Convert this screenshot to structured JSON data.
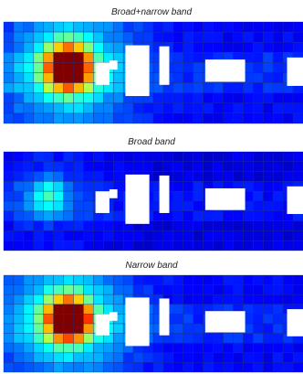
{
  "chart_data": [
    {
      "type": "heatmap",
      "title": "Broad+narrow band",
      "grid": true,
      "colormap": "jet",
      "hotspot": {
        "col": 6,
        "row": 4,
        "peak": 1.0,
        "spread": 2.0,
        "halo": 0.3
      },
      "background_level": 0.1
    },
    {
      "type": "heatmap",
      "title": "Broad band",
      "grid": true,
      "colormap": "jet",
      "hotspot": {
        "col": 4,
        "row": 4,
        "peak": 0.22,
        "spread": 1.8,
        "halo": 0.08
      },
      "background_level": 0.07
    },
    {
      "type": "heatmap",
      "title": "Narrow band",
      "grid": true,
      "colormap": "jet",
      "hotspot": {
        "col": 6,
        "row": 4,
        "peak": 1.0,
        "spread": 2.0,
        "halo": 0.3
      },
      "background_level": 0.1
    }
  ]
}
